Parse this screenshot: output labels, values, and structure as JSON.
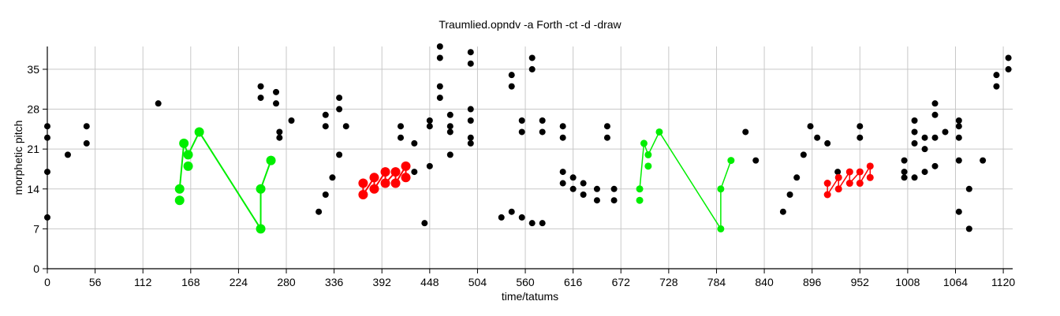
{
  "chart_data": {
    "type": "scatter",
    "title": "Traumlied.opndv  -a Forth -ct -d -draw",
    "xlabel": "time/tatums",
    "ylabel": "morphetic pitch",
    "xlim": [
      0,
      1131
    ],
    "ylim": [
      0,
      39
    ],
    "xticks": [
      0,
      56,
      112,
      168,
      224,
      280,
      336,
      392,
      448,
      504,
      560,
      616,
      672,
      728,
      784,
      840,
      896,
      952,
      1008,
      1064,
      1120
    ],
    "yticks": [
      0,
      7,
      14,
      21,
      28,
      35
    ],
    "grid": true,
    "colors": {
      "notes": "#000000",
      "pattern_green": "#00ee00",
      "pattern_red": "#ff0000",
      "grid": "#c8c8c8"
    },
    "points": [
      [
        0,
        25
      ],
      [
        0,
        23
      ],
      [
        0,
        17
      ],
      [
        0,
        9
      ],
      [
        24,
        20
      ],
      [
        46,
        25
      ],
      [
        46,
        22
      ],
      [
        130,
        29
      ],
      [
        250,
        32
      ],
      [
        250,
        30
      ],
      [
        268,
        31
      ],
      [
        268,
        29
      ],
      [
        272,
        24
      ],
      [
        272,
        23
      ],
      [
        286,
        26
      ],
      [
        318,
        10
      ],
      [
        326,
        27
      ],
      [
        326,
        25
      ],
      [
        326,
        13
      ],
      [
        334,
        16
      ],
      [
        342,
        30
      ],
      [
        342,
        28
      ],
      [
        342,
        20
      ],
      [
        350,
        25
      ],
      [
        414,
        25
      ],
      [
        414,
        23
      ],
      [
        430,
        22
      ],
      [
        430,
        17
      ],
      [
        442,
        8
      ],
      [
        448,
        26
      ],
      [
        448,
        25
      ],
      [
        448,
        18
      ],
      [
        460,
        39
      ],
      [
        460,
        37
      ],
      [
        460,
        32
      ],
      [
        460,
        30
      ],
      [
        472,
        27
      ],
      [
        472,
        25
      ],
      [
        472,
        24
      ],
      [
        472,
        20
      ],
      [
        496,
        38
      ],
      [
        496,
        36
      ],
      [
        496,
        28
      ],
      [
        496,
        26
      ],
      [
        496,
        23
      ],
      [
        496,
        22
      ],
      [
        532,
        9
      ],
      [
        544,
        34
      ],
      [
        544,
        32
      ],
      [
        544,
        10
      ],
      [
        556,
        26
      ],
      [
        556,
        24
      ],
      [
        556,
        9
      ],
      [
        568,
        37
      ],
      [
        568,
        35
      ],
      [
        568,
        8
      ],
      [
        580,
        26
      ],
      [
        580,
        24
      ],
      [
        580,
        8
      ],
      [
        604,
        25
      ],
      [
        604,
        23
      ],
      [
        604,
        17
      ],
      [
        604,
        15
      ],
      [
        616,
        16
      ],
      [
        616,
        14
      ],
      [
        628,
        15
      ],
      [
        628,
        13
      ],
      [
        644,
        14
      ],
      [
        644,
        12
      ],
      [
        656,
        25
      ],
      [
        656,
        23
      ],
      [
        664,
        14
      ],
      [
        664,
        12
      ],
      [
        818,
        24
      ],
      [
        830,
        19
      ],
      [
        862,
        10
      ],
      [
        870,
        13
      ],
      [
        878,
        16
      ],
      [
        886,
        20
      ],
      [
        894,
        25
      ],
      [
        902,
        23
      ],
      [
        914,
        22
      ],
      [
        926,
        17
      ],
      [
        952,
        25
      ],
      [
        952,
        23
      ],
      [
        1004,
        19
      ],
      [
        1004,
        17
      ],
      [
        1004,
        16
      ],
      [
        1016,
        26
      ],
      [
        1016,
        24
      ],
      [
        1016,
        22
      ],
      [
        1016,
        16
      ],
      [
        1028,
        23
      ],
      [
        1028,
        21
      ],
      [
        1028,
        17
      ],
      [
        1040,
        29
      ],
      [
        1040,
        27
      ],
      [
        1040,
        23
      ],
      [
        1040,
        18
      ],
      [
        1052,
        24
      ],
      [
        1068,
        26
      ],
      [
        1068,
        25
      ],
      [
        1068,
        23
      ],
      [
        1068,
        19
      ],
      [
        1068,
        10
      ],
      [
        1080,
        14
      ],
      [
        1080,
        7
      ],
      [
        1096,
        19
      ],
      [
        1112,
        34
      ],
      [
        1112,
        32
      ],
      [
        1126,
        37
      ],
      [
        1126,
        35
      ]
    ],
    "patterns": [
      {
        "color": "green",
        "size": "large",
        "points": [
          [
            155,
            14
          ],
          [
            155,
            12
          ],
          [
            160,
            22
          ],
          [
            165,
            20
          ],
          [
            165,
            18
          ],
          [
            178,
            24
          ],
          [
            250,
            7
          ],
          [
            250,
            14
          ],
          [
            262,
            19
          ]
        ],
        "path": [
          [
            155,
            14
          ],
          [
            160,
            22
          ],
          [
            165,
            20
          ],
          [
            178,
            24
          ],
          [
            250,
            7
          ],
          [
            250,
            14
          ],
          [
            262,
            19
          ]
        ]
      },
      {
        "color": "green",
        "size": "small",
        "points": [
          [
            694,
            14
          ],
          [
            694,
            12
          ],
          [
            699,
            22
          ],
          [
            704,
            20
          ],
          [
            704,
            18
          ],
          [
            717,
            24
          ],
          [
            789,
            7
          ],
          [
            789,
            14
          ],
          [
            801,
            19
          ]
        ],
        "path": [
          [
            694,
            14
          ],
          [
            699,
            22
          ],
          [
            704,
            20
          ],
          [
            717,
            24
          ],
          [
            789,
            7
          ],
          [
            789,
            14
          ],
          [
            801,
            19
          ]
        ]
      },
      {
        "color": "red",
        "size": "large",
        "points": [
          [
            370,
            15
          ],
          [
            370,
            13
          ],
          [
            383,
            16
          ],
          [
            383,
            14
          ],
          [
            396,
            17
          ],
          [
            396,
            15
          ],
          [
            408,
            17
          ],
          [
            408,
            15
          ],
          [
            420,
            18
          ],
          [
            420,
            16
          ]
        ],
        "path": [
          [
            370,
            15
          ],
          [
            370,
            13
          ],
          [
            383,
            16
          ],
          [
            383,
            14
          ],
          [
            396,
            17
          ],
          [
            396,
            15
          ],
          [
            408,
            17
          ],
          [
            408,
            15
          ],
          [
            420,
            18
          ],
          [
            420,
            16
          ]
        ]
      },
      {
        "color": "red",
        "size": "small",
        "points": [
          [
            914,
            15
          ],
          [
            914,
            13
          ],
          [
            927,
            16
          ],
          [
            927,
            14
          ],
          [
            940,
            17
          ],
          [
            940,
            15
          ],
          [
            952,
            17
          ],
          [
            952,
            15
          ],
          [
            964,
            18
          ],
          [
            964,
            16
          ]
        ],
        "path": [
          [
            914,
            15
          ],
          [
            914,
            13
          ],
          [
            927,
            16
          ],
          [
            927,
            14
          ],
          [
            940,
            17
          ],
          [
            940,
            15
          ],
          [
            952,
            17
          ],
          [
            952,
            15
          ],
          [
            964,
            18
          ],
          [
            964,
            16
          ]
        ]
      }
    ]
  }
}
